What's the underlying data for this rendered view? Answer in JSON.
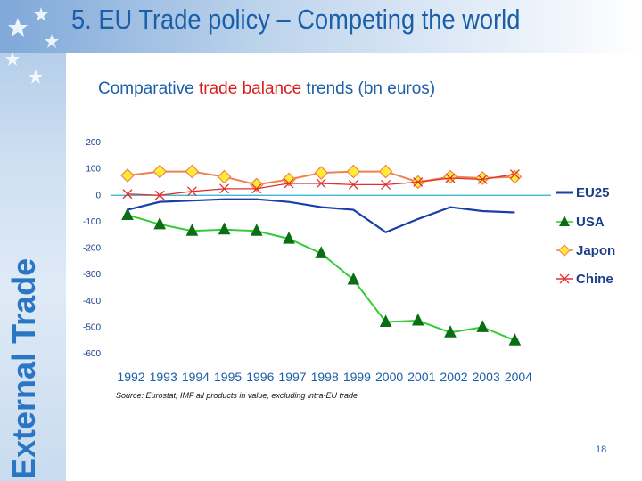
{
  "slide": {
    "title": "5. EU Trade policy – Competing the world",
    "sidebar_label": "External Trade",
    "page_number": "18"
  },
  "chart_heading": {
    "part1": "Comparative ",
    "part2": "trade balance",
    "part3": " trends (bn euros)"
  },
  "source_note": "Source: Eurostat, IMF all products in value, excluding intra-EU trade",
  "colors": {
    "title_blue": "#1a5fa8",
    "highlight_red": "#d81e1e",
    "eu25": "#1a3fa8",
    "usa": "#33cc33",
    "japon": "#f08050",
    "chine": "#e03030"
  },
  "chart_data": {
    "type": "line",
    "title": "Comparative trade balance trends (bn euros)",
    "xlabel": "",
    "ylabel": "",
    "ylim": [
      -600,
      200
    ],
    "yticks": [
      200,
      100,
      0,
      -100,
      -200,
      -300,
      -400,
      -500,
      -600
    ],
    "x": [
      "1992",
      "1993",
      "1994",
      "1995",
      "1996",
      "1997",
      "1998",
      "1999",
      "2000",
      "2001",
      "2002",
      "2003",
      "2004"
    ],
    "grid": false,
    "legend_position": "right",
    "series": [
      {
        "name": "EU25",
        "marker": "none",
        "values": [
          -55,
          -25,
          -20,
          -15,
          -15,
          -25,
          -45,
          -55,
          -140,
          -90,
          -45,
          -60,
          -65
        ]
      },
      {
        "name": "USA",
        "marker": "triangle",
        "values": [
          -75,
          -110,
          -135,
          -130,
          -135,
          -165,
          -220,
          -320,
          -480,
          -475,
          -520,
          -500,
          -550
        ]
      },
      {
        "name": "Japon",
        "marker": "diamond",
        "values": [
          75,
          90,
          90,
          70,
          40,
          60,
          85,
          90,
          90,
          50,
          70,
          65,
          70
        ]
      },
      {
        "name": "Chine",
        "marker": "x",
        "values": [
          5,
          0,
          15,
          25,
          25,
          45,
          45,
          40,
          40,
          50,
          65,
          60,
          80
        ]
      }
    ]
  }
}
